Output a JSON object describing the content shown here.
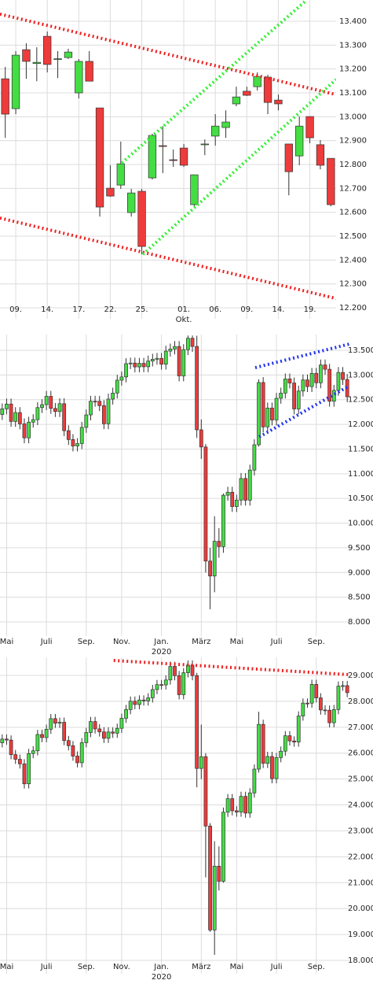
{
  "chart_data": [
    {
      "type": "candlestick",
      "up_color": "#44dd44",
      "down_color": "#ee3b3b",
      "grid": true,
      "categories": [
        null,
        "09.",
        null,
        null,
        "14.",
        null,
        null,
        "17.",
        null,
        null,
        "22.",
        null,
        null,
        "25.",
        null,
        null,
        null,
        "01.",
        null,
        null,
        "06.",
        null,
        null,
        "09.",
        null,
        null,
        "14.",
        null,
        null,
        "19.",
        null,
        null
      ],
      "x_group_labels": [
        {
          "under": "01.",
          "label": "Okt."
        }
      ],
      "open": [
        13159,
        13034,
        13281,
        13223,
        13337,
        13240,
        13248,
        13100,
        13232,
        13037,
        12701,
        12714,
        12599,
        12688,
        12744,
        12879,
        12820,
        12869,
        12632,
        12883,
        12919,
        12955,
        13054,
        13107,
        13126,
        13166,
        13070,
        12886,
        12836,
        13001,
        12883,
        12826
      ],
      "high": [
        13209,
        13275,
        13308,
        13291,
        13357,
        13275,
        13285,
        13242,
        13275,
        13037,
        12797,
        12896,
        12698,
        12698,
        12929,
        12961,
        12863,
        12886,
        12757,
        12905,
        13011,
        13027,
        13126,
        13126,
        13186,
        13176,
        13093,
        12886,
        13001,
        13001,
        12902,
        12826
      ],
      "low": [
        12912,
        13011,
        13159,
        13149,
        13186,
        13162,
        13242,
        13077,
        13149,
        12582,
        12665,
        12698,
        12582,
        12424,
        12737,
        12764,
        12790,
        12790,
        12625,
        12839,
        12879,
        12912,
        13044,
        13087,
        13110,
        13011,
        13027,
        12671,
        12797,
        12889,
        12780,
        12625
      ],
      "close": [
        13011,
        13258,
        13232,
        13228,
        13219,
        13243,
        13271,
        13232,
        13149,
        12622,
        12668,
        12803,
        12681,
        12457,
        12922,
        12876,
        12817,
        12797,
        12757,
        12886,
        12961,
        12978,
        13083,
        13090,
        13169,
        13060,
        13054,
        12770,
        12961,
        12912,
        12797,
        12632
      ],
      "ylim": [
        12154,
        13489
      ],
      "yticks": [
        {
          "value": 12200,
          "label": "12.200"
        },
        {
          "value": 12300,
          "label": "12.300"
        },
        {
          "value": 12400,
          "label": "12.400"
        },
        {
          "value": 12500,
          "label": "12.500"
        },
        {
          "value": 12600,
          "label": "12.600"
        },
        {
          "value": 12700,
          "label": "12.700"
        },
        {
          "value": 12800,
          "label": "12.800"
        },
        {
          "value": 12900,
          "label": "12.900"
        },
        {
          "value": 13000,
          "label": "13.000"
        },
        {
          "value": 13100,
          "label": "13.100"
        },
        {
          "value": 13200,
          "label": "13.200"
        },
        {
          "value": 13300,
          "label": "13.300"
        },
        {
          "value": 13400,
          "label": "13.400"
        }
      ],
      "trendlines": [
        {
          "color": "#ee2020",
          "points": [
            [
              -0.5,
              13430
            ],
            [
              31.5,
              13093
            ]
          ]
        },
        {
          "color": "#ee2020",
          "points": [
            [
              -0.5,
              12576
            ],
            [
              31.8,
              12236
            ]
          ]
        },
        {
          "color": "#33ee33",
          "points": [
            [
              11.1,
              12807
            ],
            [
              28.7,
              13489
            ]
          ]
        },
        {
          "color": "#33ee33",
          "points": [
            [
              13.1,
              12424
            ],
            [
              31.5,
              13156
            ]
          ]
        }
      ]
    },
    {
      "type": "candlestick",
      "up_color": "#44dd44",
      "down_color": "#ee3b3b",
      "grid": true,
      "categories": [
        null,
        "Mai",
        null,
        null,
        null,
        null,
        null,
        null,
        null,
        null,
        "Juli",
        null,
        null,
        null,
        null,
        null,
        null,
        null,
        null,
        "Sep.",
        null,
        null,
        null,
        null,
        null,
        null,
        null,
        "Nov.",
        null,
        null,
        null,
        null,
        null,
        null,
        null,
        null,
        "Jan.",
        null,
        null,
        null,
        null,
        null,
        null,
        null,
        null,
        "März",
        null,
        null,
        null,
        null,
        null,
        null,
        null,
        "Mai",
        null,
        null,
        null,
        null,
        null,
        null,
        null,
        null,
        "Juli",
        null,
        null,
        null,
        null,
        null,
        null,
        null,
        null,
        "Sep.",
        null,
        null,
        null,
        null,
        null,
        null,
        null
      ],
      "x_group_labels": [
        {
          "under": "Jan.",
          "label": "2020"
        }
      ],
      "open": [
        12200,
        12315,
        12412,
        12060,
        12239,
        12011,
        11727,
        12045,
        12096,
        12340,
        12399,
        12568,
        12323,
        12260,
        12419,
        11872,
        11693,
        11562,
        11611,
        11939,
        12192,
        12469,
        12468,
        12380,
        12013,
        12512,
        12634,
        12895,
        12961,
        13229,
        13242,
        13164,
        13236,
        13167,
        13283,
        13319,
        13337,
        13219,
        13483,
        13526,
        13577,
        12982,
        13514,
        13744,
        13579,
        11890,
        11542,
        9232,
        8929,
        9633,
        9525,
        10565,
        10626,
        10336,
        10467,
        10904,
        10465,
        11074,
        11587,
        12848,
        11949,
        12331,
        12089,
        12528,
        12634,
        12920,
        12838,
        12313,
        12675,
        12901,
        12765,
        13033,
        12842,
        13203,
        13116,
        12469,
        12689,
        13051,
        12909
      ],
      "high": [
        12425,
        12522,
        12522,
        12349,
        12349,
        12121,
        12155,
        12206,
        12450,
        12509,
        12678,
        12678,
        12433,
        12529,
        12529,
        11982,
        11803,
        11721,
        12049,
        12302,
        12579,
        12579,
        12578,
        12490,
        12622,
        12744,
        13005,
        13071,
        13339,
        13352,
        13352,
        13346,
        13346,
        13393,
        13429,
        13447,
        13447,
        13593,
        13636,
        13687,
        13687,
        13624,
        13800,
        13800,
        13795,
        12100,
        11600,
        9500,
        10140,
        9900,
        10600,
        10736,
        10736,
        10577,
        11014,
        11014,
        11184,
        11697,
        12913,
        12958,
        12441,
        12441,
        12638,
        12744,
        13030,
        13030,
        12948,
        12785,
        13011,
        13011,
        13143,
        13143,
        13313,
        13313,
        13226,
        12799,
        13161,
        13161,
        13019
      ],
      "low": [
        12090,
        12205,
        11950,
        11950,
        11901,
        11617,
        11617,
        11935,
        11986,
        12230,
        12289,
        12213,
        12150,
        12150,
        11762,
        11583,
        11452,
        11452,
        11501,
        11829,
        12082,
        12358,
        12270,
        11903,
        11903,
        12402,
        12524,
        12785,
        12851,
        13119,
        13054,
        13054,
        13057,
        13057,
        13173,
        13209,
        13109,
        13109,
        13373,
        13416,
        12872,
        12872,
        13404,
        13469,
        11725,
        11300,
        9000,
        8256,
        8600,
        9300,
        9400,
        10455,
        10226,
        10226,
        10357,
        10355,
        10355,
        10964,
        11550,
        11839,
        11839,
        11979,
        11979,
        12418,
        12524,
        12728,
        12203,
        12203,
        12565,
        12655,
        12655,
        12732,
        12732,
        13006,
        12359,
        12359,
        12579,
        12799,
        12450
      ],
      "close": [
        12315,
        12412,
        12060,
        12239,
        12011,
        11727,
        12045,
        12096,
        12340,
        12399,
        12568,
        12323,
        12260,
        12419,
        11872,
        11693,
        11562,
        11611,
        11939,
        12192,
        12469,
        12468,
        12380,
        12013,
        12512,
        12634,
        12895,
        12961,
        13229,
        13242,
        13164,
        13236,
        13167,
        13283,
        13319,
        13337,
        13219,
        13483,
        13526,
        13577,
        12982,
        13514,
        13744,
        13579,
        11890,
        11542,
        9232,
        8929,
        9633,
        9525,
        10565,
        10626,
        10336,
        10467,
        10904,
        10465,
        11074,
        11587,
        12848,
        11949,
        12331,
        12089,
        12528,
        12634,
        12920,
        12838,
        12313,
        12675,
        12901,
        12765,
        13033,
        12842,
        13203,
        13116,
        12469,
        12689,
        13051,
        12909,
        12560
      ],
      "ylim": [
        7713,
        13819
      ],
      "yticks": [
        {
          "value": 8000,
          "label": "8.000"
        },
        {
          "value": 8500,
          "label": "8.500"
        },
        {
          "value": 9000,
          "label": "9.000"
        },
        {
          "value": 9500,
          "label": "9.500"
        },
        {
          "value": 10000,
          "label": "10.000"
        },
        {
          "value": 10500,
          "label": "10.500"
        },
        {
          "value": 11000,
          "label": "11.000"
        },
        {
          "value": 11500,
          "label": "11.500"
        },
        {
          "value": 12000,
          "label": "12.000"
        },
        {
          "value": 12500,
          "label": "12.500"
        },
        {
          "value": 13000,
          "label": "13.000"
        },
        {
          "value": 13500,
          "label": "13.500"
        }
      ],
      "trendlines": [
        {
          "color": "#2233ee",
          "points": [
            [
              57.2,
              13149
            ],
            [
              78.5,
              13628
            ]
          ]
        },
        {
          "color": "#2233ee",
          "points": [
            [
              58.1,
              11746
            ],
            [
              78.5,
              12782
            ]
          ]
        }
      ]
    },
    {
      "type": "candlestick",
      "up_color": "#44dd44",
      "down_color": "#ee3b3b",
      "grid": true,
      "categories": [
        null,
        "Mai",
        null,
        null,
        null,
        null,
        null,
        null,
        null,
        null,
        "Juli",
        null,
        null,
        null,
        null,
        null,
        null,
        null,
        null,
        "Sep.",
        null,
        null,
        null,
        null,
        null,
        null,
        null,
        "Nov.",
        null,
        null,
        null,
        null,
        null,
        null,
        null,
        null,
        "Jan.",
        null,
        null,
        null,
        null,
        null,
        null,
        null,
        null,
        "März",
        null,
        null,
        null,
        null,
        null,
        null,
        null,
        "Mai",
        null,
        null,
        null,
        null,
        null,
        null,
        null,
        null,
        "Juli",
        null,
        null,
        null,
        null,
        null,
        null,
        null,
        null,
        "Sep.",
        null,
        null,
        null,
        null,
        null,
        null,
        null
      ],
      "x_group_labels": [
        {
          "under": "Jan.",
          "label": "2020"
        }
      ],
      "open": [
        26400,
        26543,
        26505,
        25942,
        25764,
        25586,
        24815,
        25984,
        26090,
        26720,
        26600,
        26922,
        27332,
        27154,
        27192,
        26485,
        26287,
        25886,
        25629,
        26403,
        26797,
        27220,
        26935,
        26820,
        26573,
        26817,
        26770,
        26958,
        27347,
        27681,
        28005,
        27876,
        28051,
        28015,
        28135,
        28455,
        28645,
        28634,
        28824,
        29348,
        28990,
        28256,
        29103,
        29398,
        28992,
        25409,
        25865,
        23186,
        19174,
        21637,
        21053,
        23719,
        24242,
        23775,
        23724,
        24331,
        23685,
        24465,
        25383,
        27111,
        25606,
        25871,
        25016,
        25827,
        26075,
        26672,
        26470,
        26428,
        27433,
        27931,
        27930,
        28654,
        28133,
        27666,
        27657,
        27174,
        27682,
        28587,
        28606
      ],
      "high": [
        26723,
        26723,
        26685,
        26122,
        25944,
        25766,
        26164,
        26270,
        26900,
        26900,
        27102,
        27512,
        27512,
        27372,
        27372,
        26665,
        26467,
        26066,
        26583,
        26977,
        27400,
        27400,
        27115,
        27000,
        26997,
        26997,
        27138,
        27527,
        27861,
        28185,
        28185,
        28231,
        28231,
        28315,
        28635,
        28825,
        28825,
        29004,
        29528,
        29528,
        29170,
        29283,
        29578,
        29578,
        29100,
        27100,
        26000,
        23300,
        22600,
        22400,
        23900,
        24422,
        24422,
        23955,
        24511,
        24511,
        24645,
        25563,
        27600,
        27291,
        26051,
        26051,
        26007,
        26255,
        26852,
        26852,
        26650,
        27613,
        28111,
        28111,
        28834,
        28834,
        28313,
        27846,
        27837,
        27862,
        28767,
        28786,
        28786
      ],
      "low": [
        26220,
        26325,
        25762,
        25584,
        25406,
        24635,
        24635,
        25804,
        25910,
        26420,
        26420,
        26742,
        26974,
        26974,
        26305,
        26107,
        25706,
        25449,
        25449,
        26223,
        26617,
        26755,
        26640,
        26393,
        26393,
        26590,
        26590,
        26778,
        27167,
        27501,
        27696,
        27696,
        27835,
        27835,
        27955,
        28275,
        28454,
        28454,
        28644,
        28810,
        28076,
        28076,
        28923,
        28812,
        24681,
        25000,
        21200,
        19100,
        18213,
        20700,
        21000,
        23539,
        23595,
        23544,
        23544,
        23505,
        23505,
        24285,
        25250,
        25426,
        25426,
        24836,
        24836,
        25647,
        25895,
        26290,
        26248,
        26248,
        27253,
        27750,
        27750,
        27953,
        27486,
        27477,
        26994,
        26994,
        27502,
        28407,
        28156
      ],
      "close": [
        26543,
        26505,
        25942,
        25764,
        25586,
        24815,
        25984,
        26090,
        26720,
        26600,
        26922,
        27332,
        27154,
        27192,
        26485,
        26287,
        25886,
        25629,
        26403,
        26797,
        27220,
        26935,
        26820,
        26573,
        26817,
        26770,
        26958,
        27347,
        27681,
        28005,
        27876,
        28051,
        28015,
        28135,
        28455,
        28645,
        28634,
        28824,
        29348,
        28990,
        28256,
        29103,
        29398,
        28992,
        25409,
        25865,
        23186,
        19174,
        21637,
        21053,
        23719,
        24242,
        23775,
        23724,
        24331,
        23685,
        24465,
        25383,
        27111,
        25606,
        25871,
        25016,
        25827,
        26075,
        26672,
        26470,
        26428,
        27433,
        27931,
        27930,
        28654,
        28133,
        27666,
        27657,
        27174,
        27682,
        28587,
        28606,
        28336
      ],
      "ylim": [
        17483,
        29699
      ],
      "yticks": [
        {
          "value": 18000,
          "label": "18.000"
        },
        {
          "value": 19000,
          "label": "19.000"
        },
        {
          "value": 20000,
          "label": "20.000"
        },
        {
          "value": 21000,
          "label": "21.000"
        },
        {
          "value": 22000,
          "label": "22.000"
        },
        {
          "value": 23000,
          "label": "23.000"
        },
        {
          "value": 24000,
          "label": "24.000"
        },
        {
          "value": 25000,
          "label": "25.000"
        },
        {
          "value": 26000,
          "label": "26.000"
        },
        {
          "value": 27000,
          "label": "27.000"
        },
        {
          "value": 28000,
          "label": "28.000"
        },
        {
          "value": 29000,
          "label": "29.000"
        }
      ],
      "trendlines": [
        {
          "color": "#ee2020",
          "points": [
            [
              25.2,
              29577
            ],
            [
              78.5,
              29030
            ]
          ]
        }
      ]
    }
  ]
}
